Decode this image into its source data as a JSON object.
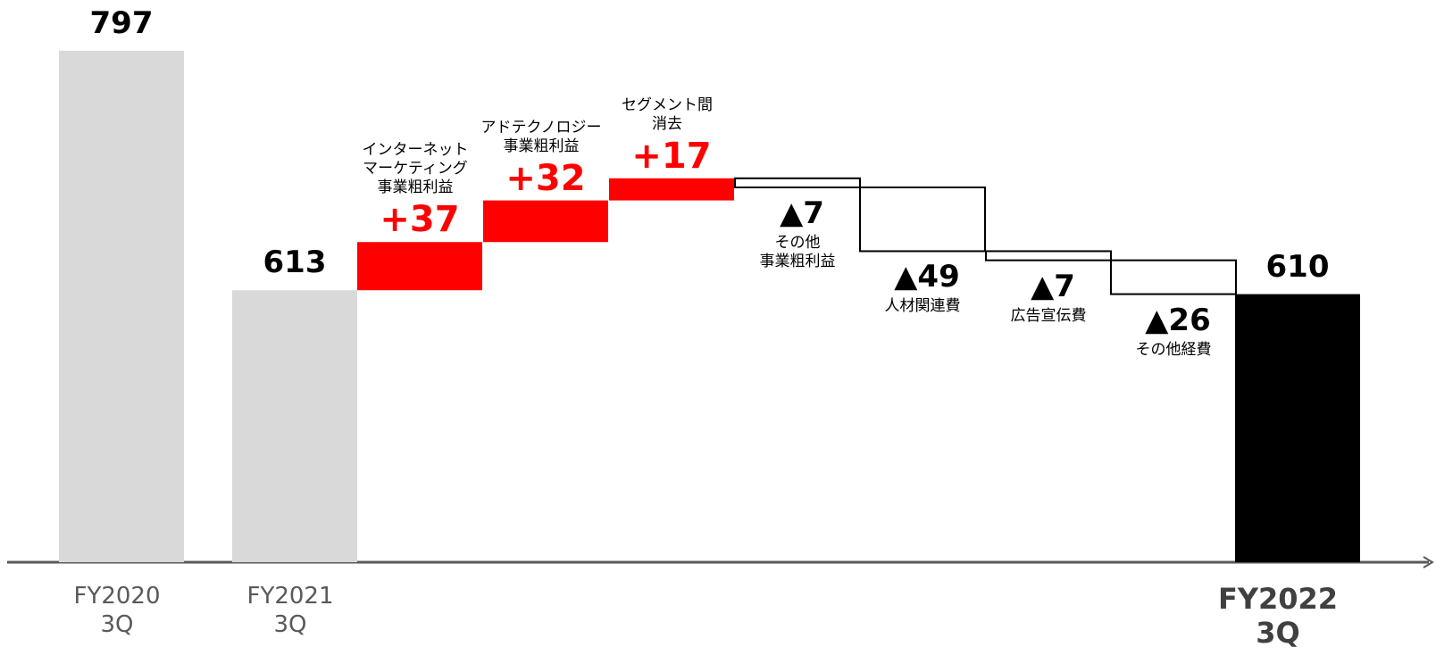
{
  "chart_data": {
    "type": "waterfall",
    "categories": [
      "FY2020\n3Q",
      "FY2021\n3Q",
      "インターネット\nマーケティング\n事業粗利益",
      "アドテクノロジー\n事業粗利益",
      "セグメント間\n消去",
      "その他\n事業粗利益",
      "人材関連費",
      "広告宣伝費",
      "その他経費",
      "FY2022\n3Q"
    ],
    "measures": [
      "total",
      "total",
      "relative",
      "relative",
      "relative",
      "relative",
      "relative",
      "relative",
      "relative",
      "total"
    ],
    "values": [
      797,
      613,
      37,
      32,
      17,
      -7,
      -49,
      -7,
      -26,
      610
    ],
    "value_labels": [
      "797",
      "613",
      "+37",
      "+32",
      "+17",
      "▲7",
      "▲49",
      "▲7",
      "▲26",
      "610"
    ],
    "colors": [
      "#d9d9d9",
      "#d9d9d9",
      "#ff0000",
      "#ff0000",
      "#ff0000",
      "#ffffff",
      "#ffffff",
      "#ffffff",
      "#ffffff",
      "#000000"
    ],
    "ylim": [
      404,
      836
    ]
  }
}
